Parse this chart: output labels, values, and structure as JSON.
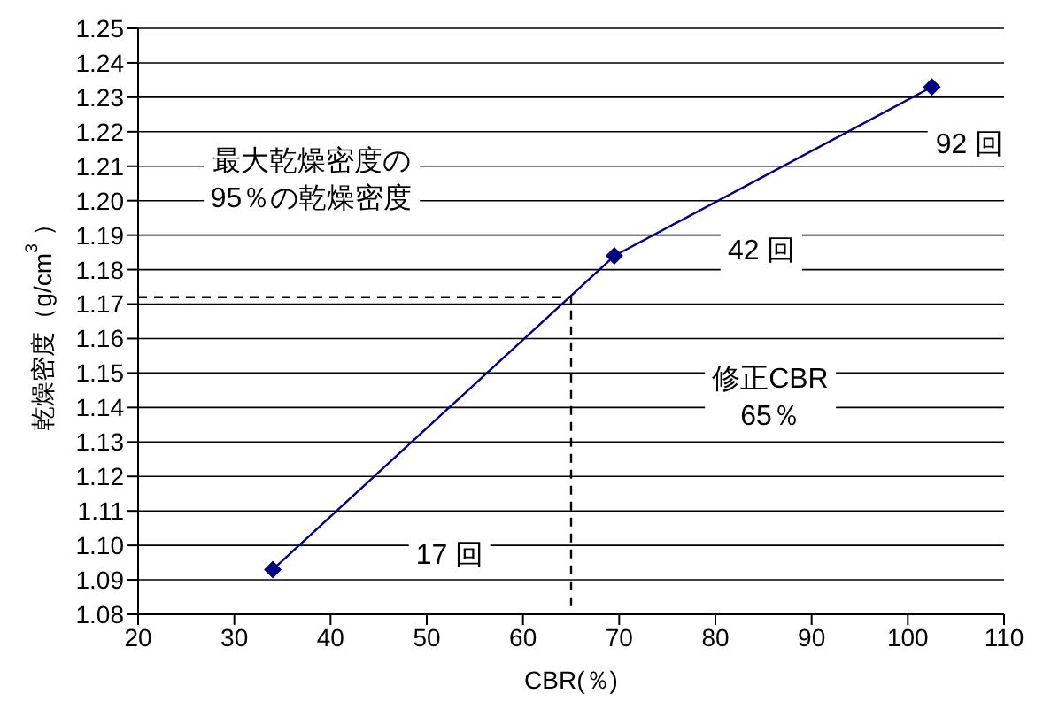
{
  "chart_data": {
    "type": "line",
    "xlabel": "CBR(％)",
    "ylabel": "乾燥密度（g/cm$^{3}$）",
    "xlim": [
      20,
      110
    ],
    "xticks": [
      20,
      30,
      40,
      50,
      60,
      70,
      80,
      90,
      100,
      110
    ],
    "ylim": [
      1.08,
      1.25
    ],
    "yticks": [
      1.08,
      1.09,
      {
        "value": 1.1,
        "label": "1.10"
      },
      1.11,
      1.12,
      1.13,
      1.14,
      1.15,
      1.16,
      1.17,
      1.18,
      1.19,
      {
        "value": 1.2,
        "label": "1.20"
      },
      1.21,
      1.22,
      1.23,
      1.24,
      1.25
    ],
    "grid": "y",
    "series": [
      {
        "color": "#000080",
        "x": [
          34,
          69.5,
          102.5
        ],
        "values": [
          1.093,
          1.184,
          1.233
        ],
        "marker": "diamond",
        "line_style": "solid"
      },
      {
        "color": "#000000",
        "x": [
          20,
          65,
          65
        ],
        "values": [
          1.172,
          1.172,
          1.08
        ],
        "marker": "none",
        "line_style": "dashed"
      }
    ],
    "annotations": [
      "最大乾燥密度の\n95％の乾燥密度",
      "92 回",
      "42 回",
      "17 回",
      "修正CBR\n65％"
    ]
  }
}
